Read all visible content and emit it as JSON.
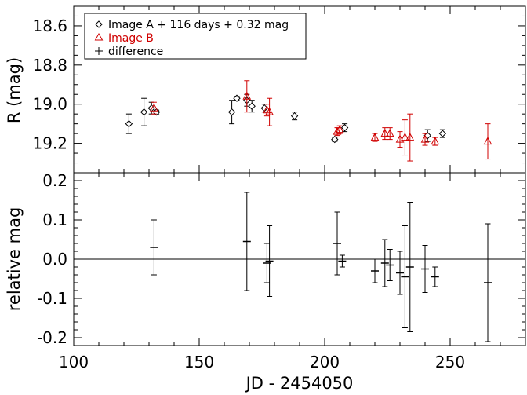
{
  "chart_data": [
    {
      "type": "scatter",
      "panel": "top",
      "ylabel": "R (mag)",
      "xlim": [
        100,
        280
      ],
      "ylim": [
        19.35,
        18.5
      ],
      "y_inverted": true,
      "y_ticks": [
        "18.6",
        "18.8",
        "19.0",
        "19.2"
      ],
      "y_tick_values": [
        18.6,
        18.8,
        19.0,
        19.2
      ],
      "grid": false,
      "legend_position": "top-left",
      "series": [
        {
          "name": "Image A + 116 days + 0.32 mag",
          "marker": "diamond",
          "color": "#000000",
          "points": [
            {
              "x": 122,
              "y": 19.1,
              "err": 0.05
            },
            {
              "x": 128,
              "y": 19.04,
              "err": 0.07
            },
            {
              "x": 131,
              "y": 19.02,
              "err": 0.03
            },
            {
              "x": 133,
              "y": 19.04,
              "err": 0.01
            },
            {
              "x": 163,
              "y": 19.04,
              "err": 0.06
            },
            {
              "x": 165,
              "y": 18.97,
              "err": 0.01
            },
            {
              "x": 169,
              "y": 18.98,
              "err": 0.03
            },
            {
              "x": 171,
              "y": 19.01,
              "err": 0.03
            },
            {
              "x": 176,
              "y": 19.02,
              "err": 0.02
            },
            {
              "x": 188,
              "y": 19.06,
              "err": 0.02
            },
            {
              "x": 204,
              "y": 19.18,
              "err": 0.01
            },
            {
              "x": 208,
              "y": 19.12,
              "err": 0.02
            },
            {
              "x": 241,
              "y": 19.16,
              "err": 0.03
            },
            {
              "x": 247,
              "y": 19.15,
              "err": 0.02
            }
          ]
        },
        {
          "name": "Image B",
          "marker": "triangle",
          "color": "#d00000",
          "points": [
            {
              "x": 132,
              "y": 19.02,
              "err": 0.03
            },
            {
              "x": 169,
              "y": 18.96,
              "err": 0.08
            },
            {
              "x": 177,
              "y": 19.03,
              "err": 0.03
            },
            {
              "x": 178,
              "y": 19.04,
              "err": 0.07
            },
            {
              "x": 205,
              "y": 19.14,
              "err": 0.02
            },
            {
              "x": 206,
              "y": 19.13,
              "err": 0.02
            },
            {
              "x": 220,
              "y": 19.17,
              "err": 0.02
            },
            {
              "x": 224,
              "y": 19.15,
              "err": 0.03
            },
            {
              "x": 226,
              "y": 19.15,
              "err": 0.03
            },
            {
              "x": 230,
              "y": 19.18,
              "err": 0.04
            },
            {
              "x": 232,
              "y": 19.17,
              "err": 0.09
            },
            {
              "x": 234,
              "y": 19.17,
              "err": 0.12
            },
            {
              "x": 240,
              "y": 19.18,
              "err": 0.03
            },
            {
              "x": 244,
              "y": 19.19,
              "err": 0.02
            },
            {
              "x": 265,
              "y": 19.19,
              "err": 0.09
            }
          ]
        }
      ],
      "legend": [
        {
          "label": "Image A + 116 days + 0.32 mag",
          "symbol": "diamond",
          "color": "#000000"
        },
        {
          "label": "Image B",
          "symbol": "triangle",
          "color": "#d00000"
        },
        {
          "label": "difference",
          "symbol": "plus",
          "color": "#000000"
        }
      ]
    },
    {
      "type": "scatter",
      "panel": "bottom",
      "xlabel": "JD - 2454050",
      "ylabel": "relative mag",
      "xlim": [
        100,
        280
      ],
      "ylim": [
        -0.22,
        0.22
      ],
      "x_ticks": [
        "100",
        "150",
        "200",
        "250"
      ],
      "x_tick_values": [
        100,
        150,
        200,
        250
      ],
      "y_ticks": [
        "-0.2",
        "-0.1",
        "0.0",
        "0.1",
        "0.2"
      ],
      "y_tick_values": [
        -0.2,
        -0.1,
        0.0,
        0.1,
        0.2
      ],
      "reference_line": 0.0,
      "grid": false,
      "series": [
        {
          "name": "difference",
          "marker": "plus",
          "color": "#000000",
          "points": [
            {
              "x": 132,
              "y": 0.03,
              "err": 0.07
            },
            {
              "x": 169,
              "y": 0.045,
              "err": 0.125
            },
            {
              "x": 177,
              "y": -0.01,
              "err": 0.05
            },
            {
              "x": 178,
              "y": -0.005,
              "err": 0.09
            },
            {
              "x": 205,
              "y": 0.04,
              "err": 0.08
            },
            {
              "x": 207,
              "y": -0.005,
              "err": 0.015
            },
            {
              "x": 220,
              "y": -0.03,
              "err": 0.03
            },
            {
              "x": 224,
              "y": -0.01,
              "err": 0.06
            },
            {
              "x": 226,
              "y": -0.015,
              "err": 0.04
            },
            {
              "x": 230,
              "y": -0.035,
              "err": 0.055
            },
            {
              "x": 232,
              "y": -0.045,
              "err": 0.13
            },
            {
              "x": 234,
              "y": -0.02,
              "err": 0.165
            },
            {
              "x": 240,
              "y": -0.025,
              "err": 0.06
            },
            {
              "x": 244,
              "y": -0.045,
              "err": 0.025
            },
            {
              "x": 265,
              "y": -0.06,
              "err": 0.15
            }
          ]
        }
      ]
    }
  ]
}
